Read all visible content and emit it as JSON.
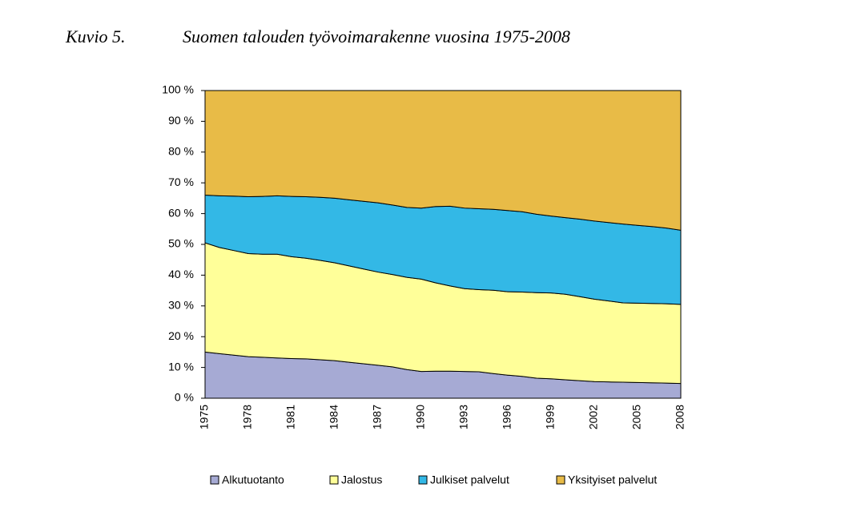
{
  "chart_data": {
    "type": "stacked_area",
    "figure_label": "Kuvio 5.",
    "title": "Suomen talouden työvoimarakenne vuosina 1975-2008",
    "categories": [
      "1975",
      null,
      null,
      "1978",
      null,
      null,
      "1981",
      null,
      null,
      "1984",
      null,
      null,
      "1987",
      null,
      null,
      "1990",
      null,
      null,
      "1993",
      null,
      null,
      "1996",
      null,
      null,
      "1999",
      null,
      null,
      "2002",
      null,
      null,
      "2005",
      null,
      null,
      "2008"
    ],
    "series": [
      {
        "name": "Alkutuotanto",
        "color": "#a6aad4",
        "values": [
          15,
          14.5,
          14,
          13.5,
          13.3,
          13.1,
          12.9,
          12.8,
          12.5,
          12.2,
          11.7,
          11.2,
          10.7,
          10.2,
          9.3,
          8.7,
          8.8,
          8.8,
          8.7,
          8.6,
          8.0,
          7.5,
          7.1,
          6.5,
          6.3,
          6.0,
          5.7,
          5.4,
          5.3,
          5.2,
          5.1,
          5.0,
          4.9,
          4.8
        ]
      },
      {
        "name": "Jalostus",
        "color": "#ffff99",
        "values": [
          35.5,
          34.5,
          34,
          33.5,
          33.5,
          33.7,
          33.1,
          32.7,
          32.3,
          31.8,
          31.3,
          30.8,
          30.3,
          30.0,
          30.0,
          30.0,
          28.7,
          27.7,
          26.9,
          26.7,
          27.1,
          27.1,
          27.4,
          27.8,
          27.9,
          27.8,
          27.3,
          26.8,
          26.3,
          25.8,
          25.8,
          25.8,
          25.8,
          25.7
        ]
      },
      {
        "name": "Julkiset palvelut",
        "color": "#33b8e6",
        "values": [
          15.5,
          16.8,
          17.7,
          18.5,
          18.8,
          19.0,
          19.6,
          20.0,
          20.5,
          21.0,
          21.5,
          22.0,
          22.5,
          22.6,
          22.7,
          23.1,
          24.8,
          25.9,
          26.2,
          26.3,
          26.3,
          26.4,
          26.1,
          25.5,
          25.0,
          24.9,
          25.2,
          25.4,
          25.5,
          25.6,
          25.3,
          25.0,
          24.6,
          24.1
        ]
      },
      {
        "name": "Yksityiset palvelut",
        "color": "#e8bb47",
        "values": [
          34,
          34.2,
          34.3,
          34.5,
          34.4,
          34.2,
          34.4,
          34.5,
          34.7,
          35,
          35.5,
          36,
          36.5,
          37.2,
          38,
          38.2,
          37.7,
          37.6,
          38.2,
          38.4,
          38.6,
          39,
          39.4,
          40.2,
          40.8,
          41.3,
          41.8,
          42.4,
          42.9,
          43.4,
          43.8,
          44.2,
          44.7,
          45.4
        ]
      }
    ],
    "ylim": [
      0,
      100
    ],
    "yticks": [
      {
        "value": 0,
        "label": "0 %"
      },
      {
        "value": 10,
        "label": "10 %"
      },
      {
        "value": 20,
        "label": "20 %"
      },
      {
        "value": 30,
        "label": "30 %"
      },
      {
        "value": 40,
        "label": "40 %"
      },
      {
        "value": 50,
        "label": "50 %"
      },
      {
        "value": 60,
        "label": "60 %"
      },
      {
        "value": 70,
        "label": "70 %"
      },
      {
        "value": 80,
        "label": "80 %"
      },
      {
        "value": 90,
        "label": "90 %"
      },
      {
        "value": 100,
        "label": "100 %"
      }
    ],
    "legend": "bottom"
  }
}
